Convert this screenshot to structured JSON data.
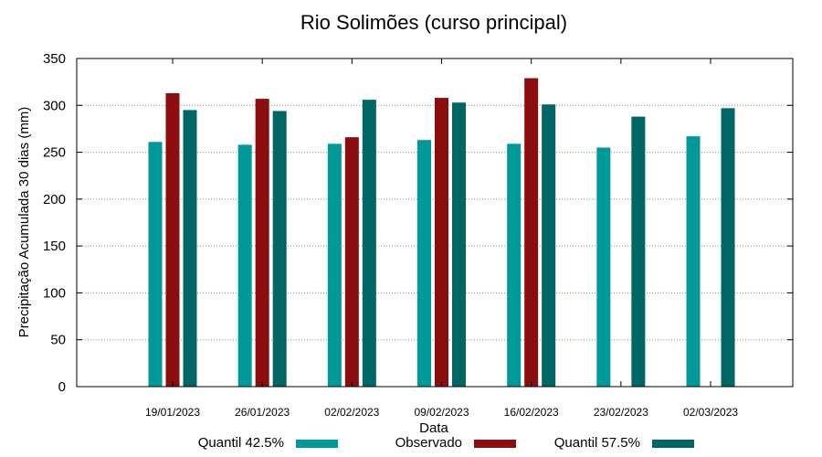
{
  "chart_data": {
    "type": "bar",
    "title": "Rio Solimões (curso principal)",
    "xlabel": "Data",
    "ylabel": "Precipitação Acumulada 30 dias (mm)",
    "ylim": [
      0,
      350
    ],
    "yticks": [
      0,
      50,
      100,
      150,
      200,
      250,
      300,
      350
    ],
    "grid": true,
    "legend_position": "bottom",
    "categories": [
      "19/01/2023",
      "26/01/2023",
      "02/02/2023",
      "09/02/2023",
      "16/02/2023",
      "23/02/2023",
      "02/03/2023"
    ],
    "series": [
      {
        "name": "Quantil 42.5%",
        "color": "#009999",
        "values": [
          261,
          258,
          259,
          263,
          259,
          255,
          267
        ]
      },
      {
        "name": "Observado",
        "color": "#8b0d0d",
        "values": [
          313,
          307,
          266,
          308,
          329,
          null,
          null
        ]
      },
      {
        "name": "Quantil 57.5%",
        "color": "#006666",
        "values": [
          295,
          294,
          306,
          303,
          301,
          288,
          297
        ]
      }
    ]
  }
}
